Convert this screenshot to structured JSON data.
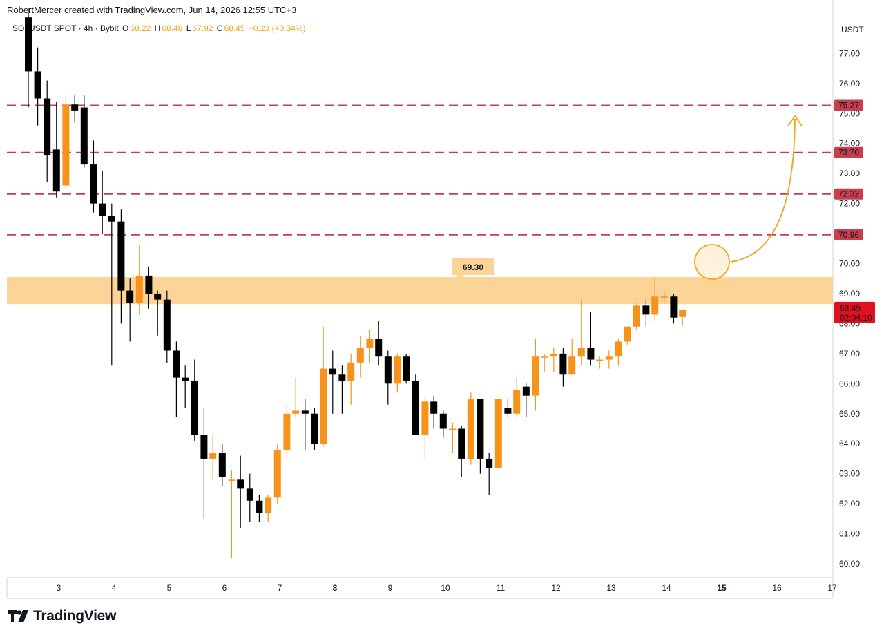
{
  "credit": "RobertMercer created with TradingView.com, Jun 14, 2026 12:55 UTC+3",
  "legend": {
    "symbol": "SOLUSDT SPOT · 4h · Bybit",
    "o_label": "O",
    "o_value": "68.22",
    "h_label": "H",
    "h_value": "68.48",
    "l_label": "L",
    "l_value": "67.92",
    "c_label": "C",
    "c_value": "68.45",
    "change": "+0.23 (+0.34%)"
  },
  "currency": "USDT",
  "logo_text": "TradingView",
  "colors": {
    "up": "#f7931a",
    "down": "#000000",
    "level_line": "#c83e4d",
    "zone": "#fdd497",
    "annotation": "#f7a21b",
    "last_price": "#e0101e"
  },
  "chart_data": {
    "type": "candlestick",
    "ylim": [
      59.5,
      78.2
    ],
    "y_ticks": [
      "60.00",
      "61.00",
      "62.00",
      "63.00",
      "64.00",
      "65.00",
      "66.00",
      "67.00",
      "68.00",
      "69.00",
      "70.00",
      "72.00",
      "73.00",
      "74.00",
      "75.00",
      "76.00",
      "77.00"
    ],
    "x_ticks": [
      "3",
      "4",
      "5",
      "6",
      "7",
      "8",
      "9",
      "10",
      "11",
      "12",
      "13",
      "14",
      "15",
      "16",
      "17"
    ],
    "x_tick_positions": [
      3,
      4,
      5,
      6,
      7,
      8,
      9,
      10,
      11,
      12,
      13,
      14,
      15,
      16,
      17
    ],
    "bold_x_ticks": [
      "8",
      "15"
    ],
    "candles": [
      {
        "x": 2.45,
        "o": 78.2,
        "h": 78.5,
        "l": 75.2,
        "c": 76.4
      },
      {
        "x": 2.62,
        "o": 76.4,
        "h": 77.2,
        "l": 74.6,
        "c": 75.5
      },
      {
        "x": 2.79,
        "o": 75.5,
        "h": 76.1,
        "l": 72.7,
        "c": 73.6
      },
      {
        "x": 2.96,
        "o": 73.8,
        "h": 75.4,
        "l": 72.2,
        "c": 72.4
      },
      {
        "x": 3.13,
        "o": 72.6,
        "h": 75.6,
        "l": 72.6,
        "c": 75.3
      },
      {
        "x": 3.29,
        "o": 75.3,
        "h": 75.6,
        "l": 74.7,
        "c": 75.1
      },
      {
        "x": 3.46,
        "o": 75.2,
        "h": 75.6,
        "l": 73.2,
        "c": 73.3
      },
      {
        "x": 3.63,
        "o": 73.3,
        "h": 74.1,
        "l": 71.7,
        "c": 72.0
      },
      {
        "x": 3.79,
        "o": 72.0,
        "h": 73.1,
        "l": 71.0,
        "c": 71.6
      },
      {
        "x": 3.96,
        "o": 71.6,
        "h": 72.0,
        "l": 66.6,
        "c": 71.4
      },
      {
        "x": 4.13,
        "o": 71.4,
        "h": 71.8,
        "l": 68.0,
        "c": 69.1
      },
      {
        "x": 4.29,
        "o": 69.1,
        "h": 69.5,
        "l": 67.4,
        "c": 68.7
      },
      {
        "x": 4.46,
        "o": 68.7,
        "h": 70.6,
        "l": 68.3,
        "c": 69.6
      },
      {
        "x": 4.63,
        "o": 69.6,
        "h": 69.9,
        "l": 68.5,
        "c": 69.0
      },
      {
        "x": 4.79,
        "o": 69.0,
        "h": 69.1,
        "l": 67.6,
        "c": 68.8
      },
      {
        "x": 4.96,
        "o": 68.8,
        "h": 69.1,
        "l": 66.7,
        "c": 67.1
      },
      {
        "x": 5.13,
        "o": 67.1,
        "h": 67.4,
        "l": 64.9,
        "c": 66.2
      },
      {
        "x": 5.29,
        "o": 66.2,
        "h": 66.6,
        "l": 65.2,
        "c": 66.1
      },
      {
        "x": 5.46,
        "o": 66.1,
        "h": 66.8,
        "l": 64.1,
        "c": 64.3
      },
      {
        "x": 5.63,
        "o": 64.3,
        "h": 65.2,
        "l": 61.5,
        "c": 63.5
      },
      {
        "x": 5.79,
        "o": 63.5,
        "h": 64.3,
        "l": 62.8,
        "c": 63.7
      },
      {
        "x": 5.96,
        "o": 63.7,
        "h": 64.0,
        "l": 62.6,
        "c": 62.9
      },
      {
        "x": 6.13,
        "o": 62.8,
        "h": 63.1,
        "l": 60.2,
        "c": 62.8
      },
      {
        "x": 6.29,
        "o": 62.8,
        "h": 63.6,
        "l": 61.2,
        "c": 62.5
      },
      {
        "x": 6.46,
        "o": 62.5,
        "h": 63.0,
        "l": 61.4,
        "c": 62.1
      },
      {
        "x": 6.63,
        "o": 62.1,
        "h": 62.3,
        "l": 61.4,
        "c": 61.7
      },
      {
        "x": 6.79,
        "o": 61.7,
        "h": 62.3,
        "l": 61.4,
        "c": 62.2
      },
      {
        "x": 6.96,
        "o": 62.2,
        "h": 64.0,
        "l": 62.0,
        "c": 63.8
      },
      {
        "x": 7.13,
        "o": 63.8,
        "h": 65.3,
        "l": 63.5,
        "c": 65.0
      },
      {
        "x": 7.29,
        "o": 65.0,
        "h": 66.2,
        "l": 64.9,
        "c": 65.1
      },
      {
        "x": 7.46,
        "o": 65.1,
        "h": 65.5,
        "l": 63.8,
        "c": 65.0
      },
      {
        "x": 7.63,
        "o": 65.0,
        "h": 65.2,
        "l": 63.8,
        "c": 64.0
      },
      {
        "x": 7.79,
        "o": 64.0,
        "h": 67.9,
        "l": 63.9,
        "c": 66.5
      },
      {
        "x": 7.96,
        "o": 66.5,
        "h": 67.1,
        "l": 65.0,
        "c": 66.3
      },
      {
        "x": 8.13,
        "o": 66.3,
        "h": 66.6,
        "l": 65.0,
        "c": 66.1
      },
      {
        "x": 8.29,
        "o": 66.1,
        "h": 67.0,
        "l": 65.3,
        "c": 66.7
      },
      {
        "x": 8.46,
        "o": 66.7,
        "h": 67.6,
        "l": 66.2,
        "c": 67.2
      },
      {
        "x": 8.63,
        "o": 67.2,
        "h": 67.8,
        "l": 66.7,
        "c": 67.5
      },
      {
        "x": 8.79,
        "o": 67.5,
        "h": 68.1,
        "l": 66.6,
        "c": 66.9
      },
      {
        "x": 8.96,
        "o": 66.9,
        "h": 67.1,
        "l": 65.3,
        "c": 66.0
      },
      {
        "x": 9.13,
        "o": 66.0,
        "h": 67.0,
        "l": 65.7,
        "c": 66.9
      },
      {
        "x": 9.29,
        "o": 66.9,
        "h": 67.0,
        "l": 66.0,
        "c": 66.1
      },
      {
        "x": 9.46,
        "o": 66.1,
        "h": 66.3,
        "l": 64.3,
        "c": 64.3
      },
      {
        "x": 9.63,
        "o": 64.3,
        "h": 65.6,
        "l": 63.5,
        "c": 65.4
      },
      {
        "x": 9.79,
        "o": 65.4,
        "h": 65.6,
        "l": 64.5,
        "c": 65.0
      },
      {
        "x": 9.96,
        "o": 65.0,
        "h": 65.1,
        "l": 64.2,
        "c": 64.5
      },
      {
        "x": 10.13,
        "o": 64.5,
        "h": 64.7,
        "l": 63.7,
        "c": 64.5
      },
      {
        "x": 10.29,
        "o": 64.5,
        "h": 64.6,
        "l": 62.9,
        "c": 63.5
      },
      {
        "x": 10.46,
        "o": 63.5,
        "h": 65.7,
        "l": 63.3,
        "c": 65.5
      },
      {
        "x": 10.63,
        "o": 65.5,
        "h": 65.5,
        "l": 63.0,
        "c": 63.5
      },
      {
        "x": 10.79,
        "o": 63.5,
        "h": 63.7,
        "l": 62.3,
        "c": 63.2
      },
      {
        "x": 10.96,
        "o": 63.2,
        "h": 65.5,
        "l": 63.2,
        "c": 65.5
      },
      {
        "x": 11.13,
        "o": 65.2,
        "h": 65.5,
        "l": 64.9,
        "c": 65.0
      },
      {
        "x": 11.29,
        "o": 65.0,
        "h": 66.2,
        "l": 64.9,
        "c": 65.8
      },
      {
        "x": 11.46,
        "o": 65.9,
        "h": 66.0,
        "l": 64.9,
        "c": 65.6
      },
      {
        "x": 11.63,
        "o": 65.6,
        "h": 67.5,
        "l": 65.1,
        "c": 66.9
      },
      {
        "x": 11.79,
        "o": 66.9,
        "h": 67.0,
        "l": 66.4,
        "c": 66.9
      },
      {
        "x": 11.96,
        "o": 66.9,
        "h": 67.2,
        "l": 66.4,
        "c": 67.0
      },
      {
        "x": 12.13,
        "o": 67.0,
        "h": 67.2,
        "l": 65.9,
        "c": 66.3
      },
      {
        "x": 12.29,
        "o": 66.3,
        "h": 67.5,
        "l": 66.3,
        "c": 66.9
      },
      {
        "x": 12.46,
        "o": 66.9,
        "h": 68.8,
        "l": 66.6,
        "c": 67.2
      },
      {
        "x": 12.63,
        "o": 67.2,
        "h": 68.4,
        "l": 66.6,
        "c": 66.8
      },
      {
        "x": 12.79,
        "o": 66.8,
        "h": 66.9,
        "l": 66.5,
        "c": 66.8
      },
      {
        "x": 12.96,
        "o": 66.8,
        "h": 67.1,
        "l": 66.5,
        "c": 66.9
      },
      {
        "x": 13.13,
        "o": 66.9,
        "h": 67.5,
        "l": 66.6,
        "c": 67.4
      },
      {
        "x": 13.29,
        "o": 67.4,
        "h": 67.9,
        "l": 67.3,
        "c": 67.9
      },
      {
        "x": 13.46,
        "o": 67.9,
        "h": 68.7,
        "l": 67.8,
        "c": 68.6
      },
      {
        "x": 13.63,
        "o": 68.6,
        "h": 68.8,
        "l": 67.9,
        "c": 68.3
      },
      {
        "x": 13.79,
        "o": 68.3,
        "h": 69.6,
        "l": 68.1,
        "c": 68.9
      },
      {
        "x": 13.96,
        "o": 68.9,
        "h": 69.1,
        "l": 68.7,
        "c": 68.9
      },
      {
        "x": 14.13,
        "o": 68.9,
        "h": 69.0,
        "l": 68.0,
        "c": 68.2
      },
      {
        "x": 14.29,
        "o": 68.22,
        "h": 68.48,
        "l": 67.92,
        "c": 68.45
      }
    ],
    "levels": [
      {
        "price": 75.27,
        "label": "75.27"
      },
      {
        "price": 73.7,
        "label": "73.70"
      },
      {
        "price": 72.32,
        "label": "72.32"
      },
      {
        "price": 70.96,
        "label": "70.96"
      }
    ],
    "zone": {
      "low": 68.65,
      "high": 69.55,
      "label": "69.30"
    },
    "last_price": {
      "value": "68.45",
      "countdown": "02:04:10"
    },
    "annotation": "circle at resistance zone with curved arrow pointing up toward 75.27"
  }
}
